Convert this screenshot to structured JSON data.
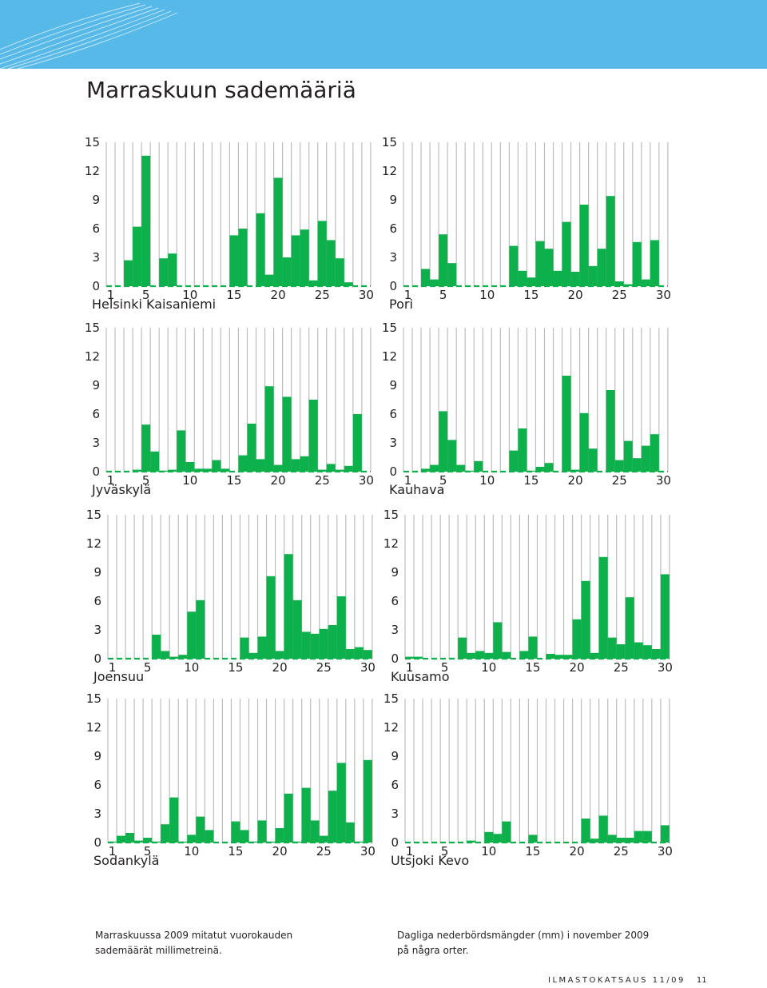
{
  "title": "Marraskuun sademääriä",
  "caption_fi": "Marraskuussa 2009 mitatut vuorokauden sademäärät millimetreinä.",
  "caption_sv": "Dagliga nederbördsmängder (mm) i november 2009 på några orter.",
  "footer": {
    "publication": "ILMASTOKATSAUS 11/09",
    "page_number": "11"
  },
  "colors": {
    "bar": "#0db14b",
    "grid": "#bdbdbd",
    "banner": "#56b9e8"
  },
  "chart_data": [
    {
      "type": "bar",
      "station": "Helsinki Kaisaniemi",
      "x": [
        1,
        2,
        3,
        4,
        5,
        6,
        7,
        8,
        9,
        10,
        11,
        12,
        13,
        14,
        15,
        16,
        17,
        18,
        19,
        20,
        21,
        22,
        23,
        24,
        25,
        26,
        27,
        28,
        29,
        30
      ],
      "values": [
        0,
        0,
        2.7,
        6.2,
        13.6,
        0,
        2.9,
        3.4,
        0,
        0,
        0,
        0,
        0,
        0,
        5.3,
        6,
        0,
        7.6,
        1.2,
        11.3,
        3,
        5.3,
        5.9,
        0.6,
        6.8,
        4.8,
        2.9,
        0.4,
        0,
        0
      ],
      "yticks": [
        0,
        3,
        6,
        9,
        12,
        15
      ],
      "xticks": [
        1,
        5,
        10,
        15,
        20,
        25,
        30
      ],
      "ylim": [
        0,
        15
      ]
    },
    {
      "type": "bar",
      "station": "Pori",
      "x": [
        1,
        2,
        3,
        4,
        5,
        6,
        7,
        8,
        9,
        10,
        11,
        12,
        13,
        14,
        15,
        16,
        17,
        18,
        19,
        20,
        21,
        22,
        23,
        24,
        25,
        26,
        27,
        28,
        29,
        30
      ],
      "values": [
        0,
        0,
        1.8,
        0.7,
        5.4,
        2.4,
        0,
        0,
        0,
        0,
        0,
        0,
        4.2,
        1.6,
        0.9,
        4.7,
        3.9,
        1.6,
        6.7,
        1.5,
        8.5,
        2.1,
        3.9,
        9.4,
        0.5,
        0.2,
        4.6,
        0.7,
        4.8,
        0
      ],
      "yticks": [
        0,
        3,
        6,
        9,
        12,
        15
      ],
      "xticks": [
        1,
        5,
        10,
        15,
        20,
        25,
        30
      ],
      "ylim": [
        0,
        15
      ]
    },
    {
      "type": "bar",
      "station": "Jyväskylä",
      "x": [
        1,
        2,
        3,
        4,
        5,
        6,
        7,
        8,
        9,
        10,
        11,
        12,
        13,
        14,
        15,
        16,
        17,
        18,
        19,
        20,
        21,
        22,
        23,
        24,
        25,
        26,
        27,
        28,
        29,
        30
      ],
      "values": [
        0,
        0,
        0,
        0.2,
        4.9,
        2.1,
        0.1,
        0.2,
        4.3,
        1,
        0.3,
        0.3,
        1.2,
        0.3,
        0,
        1.7,
        5,
        1.3,
        8.9,
        0.7,
        7.8,
        1.3,
        1.6,
        7.5,
        0.2,
        0.8,
        0.2,
        0.6,
        6,
        0
      ],
      "yticks": [
        0,
        3,
        6,
        9,
        12,
        15
      ],
      "xticks": [
        1,
        5,
        10,
        15,
        20,
        25,
        30
      ],
      "ylim": [
        0,
        15
      ]
    },
    {
      "type": "bar",
      "station": "Kauhava",
      "x": [
        1,
        2,
        3,
        4,
        5,
        6,
        7,
        8,
        9,
        10,
        11,
        12,
        13,
        14,
        15,
        16,
        17,
        18,
        19,
        20,
        21,
        22,
        23,
        24,
        25,
        26,
        27,
        28,
        29,
        30
      ],
      "values": [
        0,
        0,
        0.3,
        0.7,
        6.3,
        3.3,
        0.7,
        0.1,
        1.1,
        0,
        0,
        0,
        2.2,
        4.5,
        0.1,
        0.5,
        0.9,
        0,
        10,
        0.2,
        6.1,
        2.4,
        0,
        8.5,
        1.2,
        3.2,
        1.4,
        2.7,
        3.9,
        0
      ],
      "yticks": [
        0,
        3,
        6,
        9,
        12,
        15
      ],
      "xticks": [
        1,
        5,
        10,
        15,
        20,
        25,
        30
      ],
      "ylim": [
        0,
        15
      ]
    },
    {
      "type": "bar",
      "station": "Joensuu",
      "x": [
        1,
        2,
        3,
        4,
        5,
        6,
        7,
        8,
        9,
        10,
        11,
        12,
        13,
        14,
        15,
        16,
        17,
        18,
        19,
        20,
        21,
        22,
        23,
        24,
        25,
        26,
        27,
        28,
        29,
        30
      ],
      "values": [
        0,
        0,
        0,
        0,
        0,
        2.5,
        0.8,
        0.2,
        0.4,
        4.9,
        6.1,
        0,
        0,
        0,
        0,
        2.2,
        0.6,
        2.3,
        8.6,
        0.8,
        10.9,
        6.1,
        2.8,
        2.6,
        3.1,
        3.5,
        6.5,
        1,
        1.2,
        0.9
      ],
      "yticks": [
        0,
        3,
        6,
        9,
        12,
        15
      ],
      "xticks": [
        1,
        5,
        10,
        15,
        20,
        25,
        30
      ],
      "ylim": [
        0,
        15
      ]
    },
    {
      "type": "bar",
      "station": "Kuusamo",
      "x": [
        1,
        2,
        3,
        4,
        5,
        6,
        7,
        8,
        9,
        10,
        11,
        12,
        13,
        14,
        15,
        16,
        17,
        18,
        19,
        20,
        21,
        22,
        23,
        24,
        25,
        26,
        27,
        28,
        29,
        30
      ],
      "values": [
        0.2,
        0.2,
        0,
        0,
        0,
        0,
        2.2,
        0.6,
        0.8,
        0.6,
        3.8,
        0.7,
        0,
        0.8,
        2.3,
        0,
        0.5,
        0.4,
        0.4,
        4.1,
        8.1,
        0.6,
        10.6,
        2.2,
        1.5,
        6.4,
        1.7,
        1.4,
        1,
        8.8
      ],
      "yticks": [
        0,
        3,
        6,
        9,
        12,
        15
      ],
      "xticks": [
        1,
        5,
        10,
        15,
        20,
        25,
        30
      ],
      "ylim": [
        0,
        15
      ]
    },
    {
      "type": "bar",
      "station": "Sodankylä",
      "x": [
        1,
        2,
        3,
        4,
        5,
        6,
        7,
        8,
        9,
        10,
        11,
        12,
        13,
        14,
        15,
        16,
        17,
        18,
        19,
        20,
        21,
        22,
        23,
        24,
        25,
        26,
        27,
        28,
        29,
        30
      ],
      "values": [
        0.1,
        0.7,
        1,
        0.2,
        0.5,
        0.1,
        1.9,
        4.7,
        0.1,
        0.8,
        2.7,
        1.3,
        0,
        0,
        2.2,
        1.3,
        0.1,
        2.3,
        0.1,
        1.5,
        5.1,
        0.1,
        5.7,
        2.3,
        0.7,
        5.4,
        8.3,
        2.1,
        0.1,
        8.6
      ],
      "yticks": [
        0,
        3,
        6,
        9,
        12,
        15
      ],
      "xticks": [
        1,
        5,
        10,
        15,
        20,
        25,
        30
      ],
      "ylim": [
        0,
        15
      ]
    },
    {
      "type": "bar",
      "station": "Utsjoki Kevo",
      "x": [
        1,
        2,
        3,
        4,
        5,
        6,
        7,
        8,
        9,
        10,
        11,
        12,
        13,
        14,
        15,
        16,
        17,
        18,
        19,
        20,
        21,
        22,
        23,
        24,
        25,
        26,
        27,
        28,
        29,
        30
      ],
      "values": [
        0,
        0,
        0,
        0,
        0,
        0,
        0,
        0.2,
        0,
        1.1,
        0.9,
        2.2,
        0,
        0,
        0.8,
        0,
        0,
        0,
        0,
        0,
        2.5,
        0.4,
        2.8,
        0.8,
        0.5,
        0.5,
        1.2,
        1.2,
        0,
        1.8
      ],
      "yticks": [
        0,
        3,
        6,
        9,
        12,
        15
      ],
      "xticks": [
        1,
        5,
        10,
        15,
        20,
        25,
        30
      ],
      "ylim": [
        0,
        15
      ]
    }
  ]
}
